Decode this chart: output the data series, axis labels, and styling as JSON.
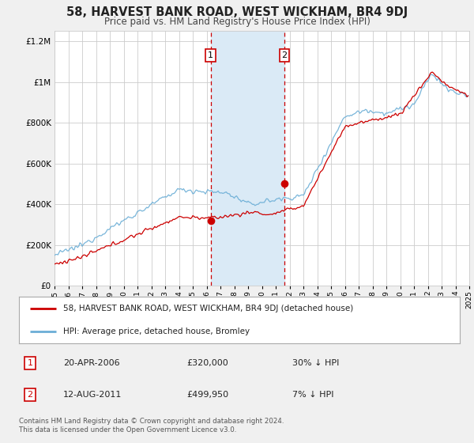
{
  "title": "58, HARVEST BANK ROAD, WEST WICKHAM, BR4 9DJ",
  "subtitle": "Price paid vs. HM Land Registry's House Price Index (HPI)",
  "legend_line1": "58, HARVEST BANK ROAD, WEST WICKHAM, BR4 9DJ (detached house)",
  "legend_line2": "HPI: Average price, detached house, Bromley",
  "annotation1_date": "20-APR-2006",
  "annotation1_price": "£320,000",
  "annotation1_hpi": "30% ↓ HPI",
  "annotation2_date": "12-AUG-2011",
  "annotation2_price": "£499,950",
  "annotation2_hpi": "7% ↓ HPI",
  "footer": "Contains HM Land Registry data © Crown copyright and database right 2024.\nThis data is licensed under the Open Government Licence v3.0.",
  "sale1_year": 2006.29,
  "sale1_value": 320000,
  "sale2_year": 2011.62,
  "sale2_value": 499950,
  "hpi_color": "#6baed6",
  "property_color": "#cc0000",
  "shaded_color": "#daeaf6",
  "background_color": "#f0f0f0",
  "plot_bg_color": "#ffffff",
  "ylim_max": 1250000,
  "xlim_start": 1995,
  "xlim_end": 2025,
  "yticks": [
    0,
    200000,
    400000,
    600000,
    800000,
    1000000,
    1200000
  ]
}
